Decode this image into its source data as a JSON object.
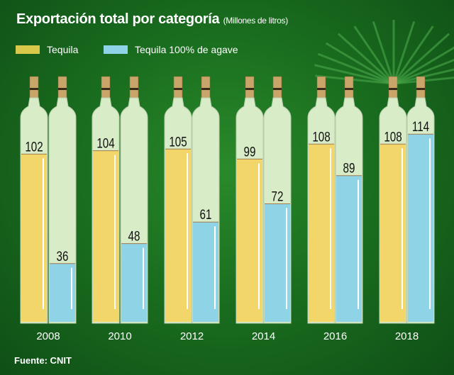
{
  "chart_data": {
    "type": "bar",
    "title": "Exportación total por categoría",
    "subtitle": "(Millones de litros)",
    "categories": [
      "2008",
      "2010",
      "2012",
      "2014",
      "2016",
      "2018"
    ],
    "series": [
      {
        "name": "Tequila",
        "color": "#f2d66a",
        "values": [
          102,
          104,
          105,
          99,
          108,
          108
        ]
      },
      {
        "name": "Tequila 100% de agave",
        "color": "#8fd3e6",
        "values": [
          36,
          48,
          61,
          72,
          89,
          114
        ]
      }
    ],
    "ylim": [
      0,
      125
    ],
    "legend": "top-left"
  },
  "source": "Fuente: CNIT"
}
